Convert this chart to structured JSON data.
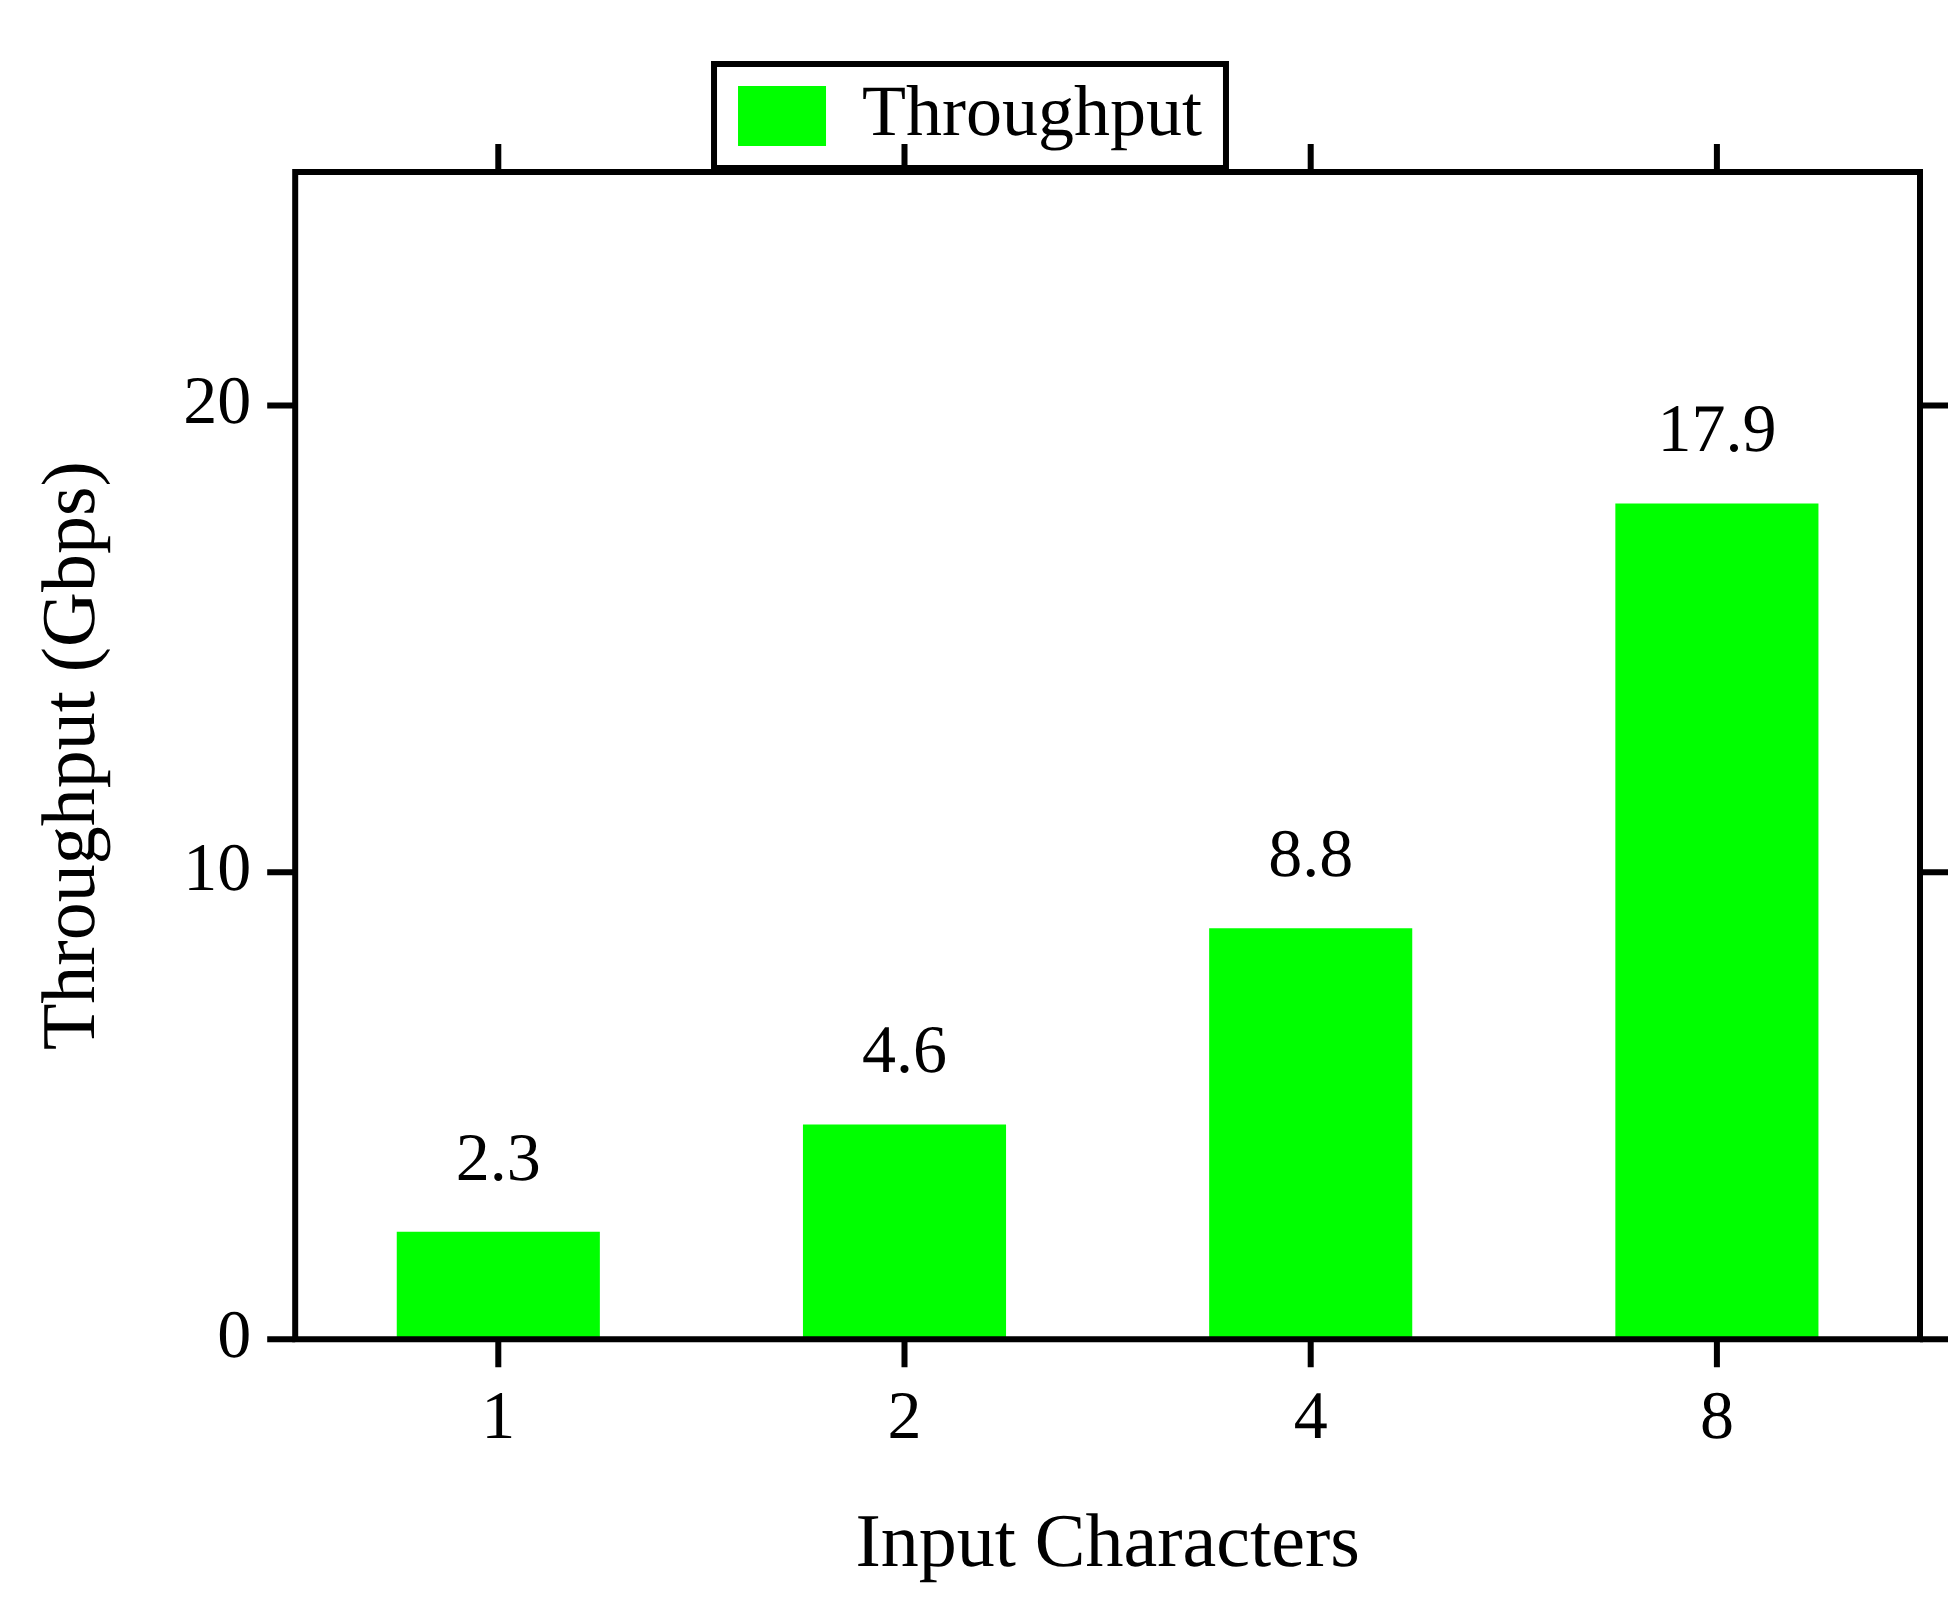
{
  "chart_data": {
    "type": "bar",
    "xlabel": "Input Characters",
    "ylabel": "Throughput (Gbps)",
    "categories": [
      "1",
      "2",
      "4",
      "8"
    ],
    "series": [
      {
        "name": "Throughput",
        "color": "#00ff00",
        "values": [
          2.3,
          4.6,
          8.8,
          17.9
        ]
      }
    ],
    "ylim": [
      0,
      25
    ],
    "yticks": [
      0,
      10,
      20
    ],
    "grid": false,
    "legend": "top",
    "data_labels": true
  }
}
